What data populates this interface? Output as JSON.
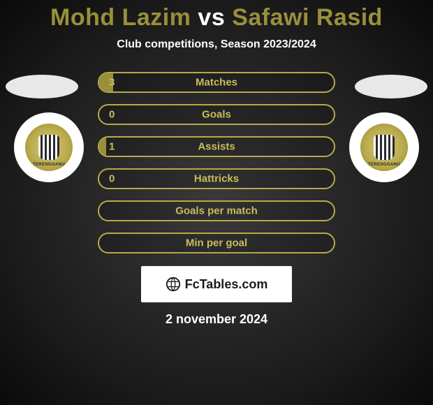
{
  "title": {
    "player1": "Mohd Lazim",
    "vs": "vs",
    "player2": "Safawi Rasid",
    "player1_color": "#9a8f3a",
    "vs_color": "#ffffff",
    "player2_color": "#9a8f3a"
  },
  "subtitle": "Club competitions, Season 2023/2024",
  "player_oval_color": "#e8e8e8",
  "crest_label": "TERENGGANU",
  "accent_color": "#9a8f3a",
  "accent_border": "#b8a94a",
  "bar_label_color": "#c9bd5e",
  "bar_value_color": "#c9bd5e",
  "stats": [
    {
      "label": "Matches",
      "value": "3",
      "show_value": true,
      "fill_pct": 6
    },
    {
      "label": "Goals",
      "value": "0",
      "show_value": true,
      "fill_pct": 0
    },
    {
      "label": "Assists",
      "value": "1",
      "show_value": true,
      "fill_pct": 3
    },
    {
      "label": "Hattricks",
      "value": "0",
      "show_value": true,
      "fill_pct": 0
    },
    {
      "label": "Goals per match",
      "value": "",
      "show_value": false,
      "fill_pct": 0
    },
    {
      "label": "Min per goal",
      "value": "",
      "show_value": false,
      "fill_pct": 0
    }
  ],
  "branding": "FcTables.com",
  "date": "2 november 2024"
}
